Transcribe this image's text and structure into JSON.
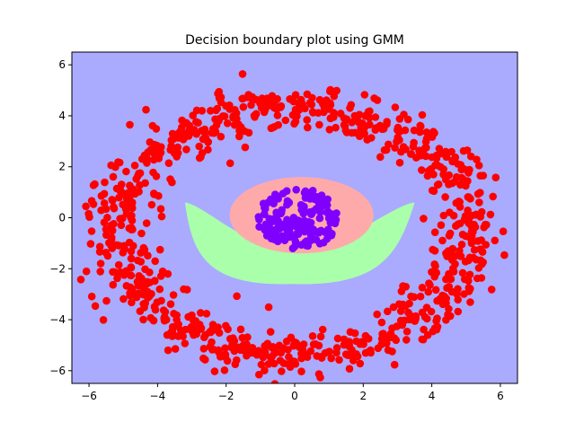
{
  "chart_data": {
    "type": "scatter",
    "title": "Decision boundary plot using GMM",
    "xlabel": "",
    "ylabel": "",
    "xlim": [
      -6.5,
      6.5
    ],
    "ylim": [
      -6.5,
      6.5
    ],
    "xticks": [
      -6,
      -4,
      -2,
      0,
      2,
      4,
      6
    ],
    "yticks": [
      -6,
      -4,
      -2,
      0,
      2,
      4,
      6
    ],
    "xtick_labels": [
      "−6",
      "−4",
      "−2",
      "0",
      "2",
      "4",
      "6"
    ],
    "ytick_labels": [
      "−6",
      "−4",
      "−2",
      "0",
      "2",
      "4",
      "6"
    ],
    "grid": false,
    "background_region_color": "#aaaaff",
    "regions": [
      {
        "name": "outer",
        "color": "#aaaaff"
      },
      {
        "name": "middle-band",
        "color": "#aaffaa",
        "shape": "crescent",
        "left_tip": [
          -3.2,
          0.6
        ],
        "right_tip": [
          3.5,
          0.6
        ],
        "bottom": [
          -0.1,
          -2.6
        ],
        "inner_bottom": [
          0,
          -1.2
        ]
      },
      {
        "name": "center-blob",
        "color": "#ffaaaa",
        "center": [
          0.2,
          0.1
        ],
        "rx": 2.1,
        "ry": 1.5
      }
    ],
    "series": [
      {
        "name": "outer-ring",
        "color": "#ff0000",
        "n": 900,
        "radius_mean": 4.9,
        "radius_sd": 0.45,
        "center": [
          -0.05,
          -0.5
        ],
        "x_scale": 1.05,
        "y_scale": 1.0
      },
      {
        "name": "inner-cluster",
        "color": "#8000ff",
        "n": 160,
        "center": [
          0.1,
          -0.05
        ],
        "radius_max": 1.2
      }
    ]
  }
}
